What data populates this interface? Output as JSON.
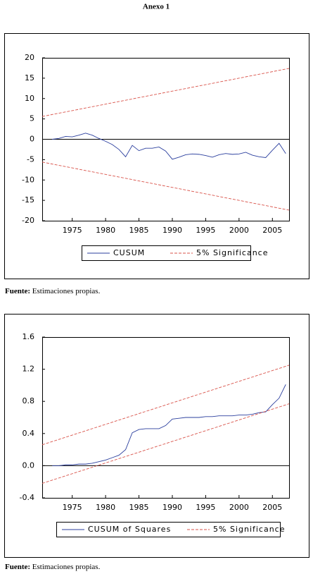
{
  "heading": "Anexo 1",
  "notes": [
    {
      "label": "Fuente:",
      "text": "Estimaciones propias."
    },
    {
      "label": "Fuente:",
      "text": "Estimaciones propias."
    }
  ],
  "chart_data": [
    {
      "type": "line",
      "xlim": [
        1970.5,
        2007.5
      ],
      "xticks": [
        1975,
        1980,
        1985,
        1990,
        1995,
        2000,
        2005
      ],
      "ylim": [
        -20,
        20
      ],
      "yticks": [
        -20,
        -15,
        -10,
        -5,
        0,
        5,
        10,
        15,
        20
      ],
      "series": [
        {
          "name": "CUSUM",
          "color": "#2b3f9e",
          "style": "solid",
          "x": [
            1972,
            1973,
            1974,
            1975,
            1976,
            1977,
            1978,
            1979,
            1980,
            1981,
            1982,
            1983,
            1984,
            1985,
            1986,
            1987,
            1988,
            1989,
            1990,
            1991,
            1992,
            1993,
            1994,
            1995,
            1996,
            1997,
            1998,
            1999,
            2000,
            2001,
            2002,
            2003,
            2004,
            2005,
            2006,
            2007
          ],
          "values": [
            0,
            0.2,
            0.7,
            0.6,
            1.0,
            1.5,
            1.0,
            0.2,
            -0.5,
            -1.3,
            -2.5,
            -4.3,
            -1.5,
            -2.8,
            -2.2,
            -2.2,
            -1.9,
            -2.9,
            -4.9,
            -4.4,
            -3.8,
            -3.6,
            -3.7,
            -4.0,
            -4.4,
            -3.8,
            -3.5,
            -3.7,
            -3.6,
            -3.2,
            -3.9,
            -4.3,
            -4.5,
            -2.7,
            -1.0,
            -3.5
          ]
        },
        {
          "name": "5% Significance",
          "color": "#d9534a",
          "style": "dashed",
          "x": [
            1970.5,
            2007.5
          ],
          "values": [
            5.6,
            17.4
          ]
        },
        {
          "color": "#d9534a",
          "style": "dashed",
          "x": [
            1970.5,
            2007.5
          ],
          "values": [
            -5.6,
            -17.4
          ]
        }
      ]
    },
    {
      "type": "line",
      "xlim": [
        1970.5,
        2007.5
      ],
      "xticks": [
        1975,
        1980,
        1985,
        1990,
        1995,
        2000,
        2005
      ],
      "ylim": [
        -0.4,
        1.6
      ],
      "yticks": [
        -0.4,
        {
          "value": 0,
          "label": "0.0"
        },
        0.4,
        0.8,
        1.2,
        1.6
      ],
      "series": [
        {
          "name": "CUSUM of Squares",
          "color": "#2b3f9e",
          "style": "solid",
          "x": [
            1972,
            1973,
            1974,
            1975,
            1976,
            1977,
            1978,
            1979,
            1980,
            1981,
            1982,
            1983,
            1984,
            1985,
            1986,
            1987,
            1988,
            1989,
            1990,
            1991,
            1992,
            1993,
            1994,
            1995,
            1996,
            1997,
            1998,
            1999,
            2000,
            2001,
            2002,
            2003,
            2004,
            2005,
            2006,
            2007
          ],
          "values": [
            0,
            0,
            0.01,
            0.01,
            0.02,
            0.02,
            0.03,
            0.05,
            0.07,
            0.1,
            0.13,
            0.2,
            0.41,
            0.45,
            0.46,
            0.46,
            0.46,
            0.5,
            0.58,
            0.59,
            0.6,
            0.6,
            0.6,
            0.61,
            0.61,
            0.62,
            0.62,
            0.62,
            0.63,
            0.63,
            0.64,
            0.66,
            0.67,
            0.76,
            0.84,
            1.01
          ]
        },
        {
          "name": "5% Significance",
          "color": "#d9534a",
          "style": "dashed",
          "x": [
            1970.5,
            2007.5
          ],
          "values": [
            0.26,
            1.25
          ]
        },
        {
          "color": "#d9534a",
          "style": "dashed",
          "x": [
            1970.5,
            2007.5
          ],
          "values": [
            -0.22,
            0.77
          ]
        }
      ]
    }
  ]
}
